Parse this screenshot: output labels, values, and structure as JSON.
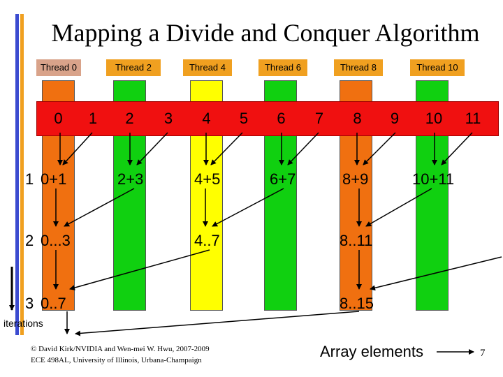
{
  "title": "Mapping a Divide and Conquer Algorithm",
  "threads": [
    {
      "label": "Thread 0",
      "bg": "#d9a38a"
    },
    {
      "label": "Thread 2",
      "bg": "#f0a020"
    },
    {
      "label": "Thread 4",
      "bg": "#f0a020"
    },
    {
      "label": "Thread 6",
      "bg": "#f0a020"
    },
    {
      "label": "Thread 8",
      "bg": "#f0a020"
    },
    {
      "label": "Thread 10",
      "bg": "#f0a020"
    }
  ],
  "column_colors": {
    "orange": "#f07010",
    "green": "#10d010",
    "yellow": "#ffff00",
    "red": "#f01010"
  },
  "array_row": [
    "0",
    "1",
    "2",
    "3",
    "4",
    "5",
    "6",
    "7",
    "8",
    "9",
    "10",
    "11"
  ],
  "row1": {
    "step": "1",
    "cells": [
      "0+1",
      "2+3",
      "4+5",
      "6+7",
      "8+9",
      "10+11"
    ]
  },
  "row2": {
    "step": "2",
    "cells": [
      "0...3",
      "4..7",
      "8..11"
    ]
  },
  "row3": {
    "step": "3",
    "cells": [
      "0..7",
      "8..15"
    ]
  },
  "iterations_label": "iterations",
  "array_elements_label": "Array elements",
  "footer": {
    "line1": "© David Kirk/NVIDIA and Wen-mei W. Hwu, 2007-2009",
    "line2": "ECE 498AL, University of Illinois, Urbana-Champaign"
  },
  "page_number": "7"
}
